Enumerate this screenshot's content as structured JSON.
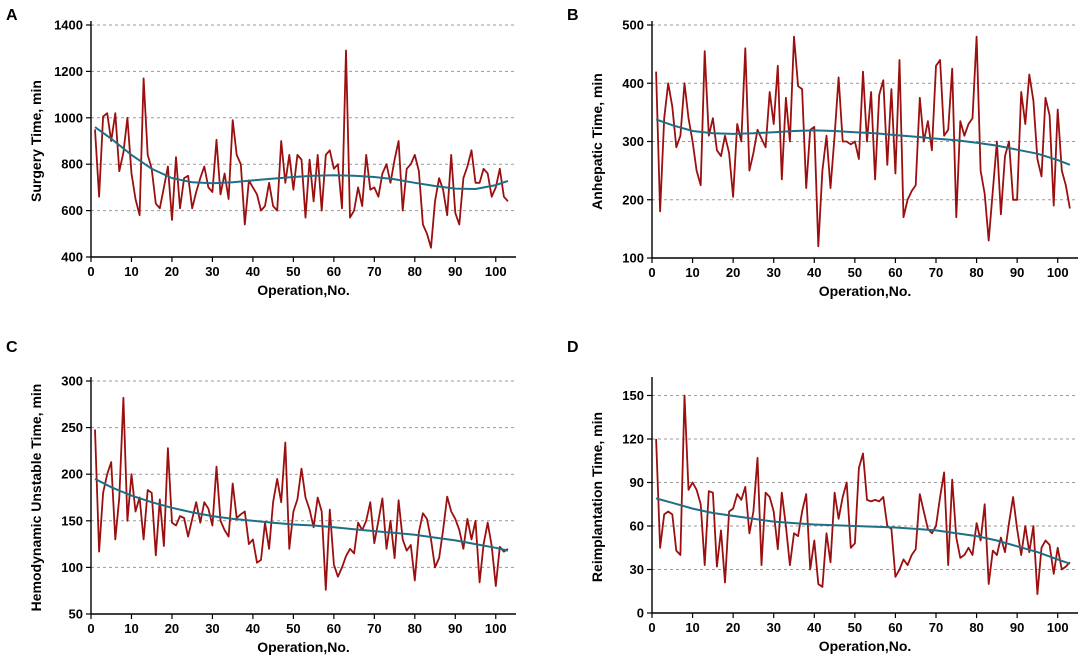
{
  "colors": {
    "observed": "#9b0f0f",
    "trend": "#1e6f86"
  },
  "chart_data": [
    {
      "type": "line",
      "panel": "A",
      "xlabel": "Operation,No.",
      "ylabel": "Surgery Time, min",
      "xlim": [
        0,
        105
      ],
      "ylim": [
        400,
        1400
      ],
      "xticks": [
        0,
        10,
        20,
        30,
        40,
        50,
        60,
        70,
        80,
        90,
        100
      ],
      "yticks": [
        400,
        600,
        800,
        1000,
        1200,
        1400
      ],
      "grid": "horizontal dashed",
      "series": [
        {
          "name": "observed",
          "x_start": 1,
          "values": [
            950,
            660,
            1005,
            1020,
            900,
            1020,
            770,
            850,
            1000,
            760,
            650,
            580,
            1170,
            840,
            780,
            630,
            610,
            700,
            790,
            560,
            830,
            610,
            740,
            750,
            610,
            680,
            740,
            790,
            700,
            680,
            905,
            670,
            760,
            650,
            990,
            840,
            800,
            540,
            730,
            700,
            670,
            600,
            620,
            720,
            620,
            600,
            900,
            720,
            840,
            690,
            840,
            820,
            570,
            820,
            640,
            840,
            600,
            840,
            860,
            780,
            800,
            610,
            1290,
            570,
            600,
            700,
            620,
            840,
            690,
            700,
            660,
            760,
            800,
            720,
            820,
            900,
            600,
            780,
            800,
            840,
            770,
            540,
            500,
            440,
            640,
            740,
            690,
            580,
            840,
            590,
            540,
            740,
            790,
            860,
            720,
            720,
            780,
            760,
            660,
            700,
            780,
            660,
            640
          ]
        },
        {
          "name": "trend",
          "x": [
            1,
            5,
            10,
            15,
            20,
            25,
            30,
            35,
            40,
            45,
            50,
            55,
            60,
            65,
            70,
            75,
            80,
            85,
            90,
            95,
            100,
            103
          ],
          "values": [
            960,
            910,
            840,
            780,
            740,
            722,
            718,
            722,
            730,
            738,
            745,
            750,
            752,
            750,
            745,
            735,
            720,
            706,
            695,
            693,
            710,
            728
          ]
        }
      ]
    },
    {
      "type": "line",
      "panel": "B",
      "xlabel": "Operation,No.",
      "ylabel": "Anhepatic Time, min",
      "xlim": [
        0,
        105
      ],
      "ylim": [
        100,
        500
      ],
      "xticks": [
        0,
        10,
        20,
        30,
        40,
        50,
        60,
        70,
        80,
        90,
        100
      ],
      "yticks": [
        100,
        200,
        300,
        400,
        500
      ],
      "grid": "horizontal dashed",
      "series": [
        {
          "name": "observed",
          "x_start": 1,
          "values": [
            420,
            180,
            340,
            400,
            360,
            290,
            310,
            400,
            340,
            300,
            250,
            225,
            455,
            310,
            340,
            285,
            275,
            310,
            280,
            205,
            330,
            300,
            460,
            250,
            280,
            320,
            305,
            290,
            385,
            330,
            430,
            235,
            375,
            300,
            480,
            395,
            390,
            220,
            320,
            325,
            120,
            250,
            310,
            220,
            310,
            410,
            300,
            300,
            295,
            300,
            270,
            420,
            300,
            385,
            235,
            380,
            405,
            260,
            390,
            245,
            440,
            170,
            200,
            215,
            225,
            375,
            300,
            335,
            285,
            430,
            440,
            310,
            320,
            425,
            170,
            335,
            310,
            330,
            340,
            480,
            250,
            210,
            130,
            215,
            300,
            175,
            275,
            300,
            200,
            200,
            385,
            330,
            415,
            370,
            270,
            240,
            375,
            345,
            190,
            355,
            250,
            225,
            185
          ]
        },
        {
          "name": "trend",
          "x": [
            1,
            5,
            10,
            15,
            20,
            25,
            30,
            35,
            40,
            45,
            50,
            55,
            60,
            65,
            70,
            75,
            80,
            85,
            90,
            95,
            100,
            103
          ],
          "values": [
            338,
            328,
            318,
            314,
            313,
            314,
            316,
            318,
            319,
            318,
            316,
            314,
            311,
            308,
            305,
            302,
            298,
            293,
            286,
            279,
            268,
            260
          ]
        }
      ]
    },
    {
      "type": "line",
      "panel": "C",
      "xlabel": "Operation,No.",
      "ylabel": "Hemodynamic Unstable Time, min",
      "xlim": [
        0,
        105
      ],
      "ylim": [
        50,
        300
      ],
      "xticks": [
        0,
        10,
        20,
        30,
        40,
        50,
        60,
        70,
        80,
        90,
        100
      ],
      "yticks": [
        50,
        100,
        150,
        200,
        250,
        300
      ],
      "grid": "horizontal dashed",
      "series": [
        {
          "name": "observed",
          "x_start": 1,
          "values": [
            248,
            117,
            180,
            200,
            213,
            130,
            175,
            282,
            150,
            200,
            160,
            175,
            130,
            183,
            180,
            113,
            173,
            123,
            228,
            148,
            145,
            155,
            153,
            133,
            152,
            170,
            148,
            170,
            163,
            145,
            208,
            150,
            140,
            133,
            190,
            153,
            157,
            160,
            125,
            130,
            105,
            108,
            148,
            120,
            170,
            195,
            170,
            234,
            120,
            160,
            173,
            206,
            175,
            162,
            143,
            175,
            160,
            76,
            162,
            103,
            90,
            100,
            112,
            120,
            115,
            148,
            140,
            150,
            170,
            126,
            150,
            174,
            120,
            150,
            110,
            172,
            130,
            118,
            124,
            86,
            138,
            158,
            152,
            130,
            100,
            110,
            140,
            176,
            160,
            152,
            140,
            120,
            152,
            130,
            150,
            84,
            125,
            148,
            123,
            80,
            122,
            117,
            120
          ]
        },
        {
          "name": "trend",
          "x": [
            1,
            5,
            10,
            15,
            20,
            25,
            30,
            35,
            40,
            45,
            50,
            55,
            60,
            65,
            70,
            75,
            80,
            85,
            90,
            95,
            100,
            103
          ],
          "values": [
            195,
            186,
            177,
            170,
            164,
            159,
            155,
            152,
            150,
            148,
            146,
            145,
            143,
            141,
            139,
            137,
            135,
            132,
            129,
            125,
            121,
            118
          ]
        }
      ]
    },
    {
      "type": "line",
      "panel": "D",
      "xlabel": "Operation,No.",
      "ylabel": "Reimplantation Time, min",
      "xlim": [
        0,
        105
      ],
      "ylim": [
        0,
        160
      ],
      "xticks": [
        0,
        10,
        20,
        30,
        40,
        50,
        60,
        70,
        80,
        90,
        100
      ],
      "yticks": [
        0,
        30,
        60,
        90,
        120,
        150
      ],
      "grid": "horizontal dashed",
      "series": [
        {
          "name": "observed",
          "x_start": 1,
          "values": [
            120,
            45,
            68,
            70,
            68,
            43,
            40,
            150,
            85,
            90,
            85,
            75,
            33,
            84,
            83,
            32,
            57,
            21,
            70,
            72,
            82,
            78,
            87,
            55,
            70,
            107,
            33,
            83,
            80,
            70,
            44,
            83,
            60,
            33,
            55,
            53,
            70,
            82,
            30,
            50,
            20,
            18,
            55,
            35,
            83,
            65,
            80,
            90,
            45,
            48,
            100,
            110,
            78,
            77,
            78,
            77,
            80,
            60,
            58,
            25,
            30,
            37,
            33,
            40,
            44,
            82,
            70,
            58,
            55,
            60,
            80,
            97,
            33,
            92,
            52,
            38,
            40,
            45,
            40,
            62,
            50,
            75,
            20,
            43,
            40,
            52,
            42,
            62,
            80,
            58,
            40,
            60,
            42,
            60,
            13,
            45,
            50,
            47,
            27,
            45,
            30,
            32,
            35
          ]
        },
        {
          "name": "trend",
          "x": [
            1,
            5,
            10,
            15,
            20,
            25,
            30,
            35,
            40,
            45,
            50,
            55,
            60,
            65,
            70,
            75,
            80,
            85,
            90,
            95,
            100,
            103
          ],
          "values": [
            79,
            76,
            72,
            69,
            67,
            65,
            63,
            62,
            61,
            60.5,
            60,
            59.5,
            59,
            58,
            57,
            55,
            53,
            50,
            46,
            42,
            37,
            34
          ]
        }
      ]
    }
  ]
}
